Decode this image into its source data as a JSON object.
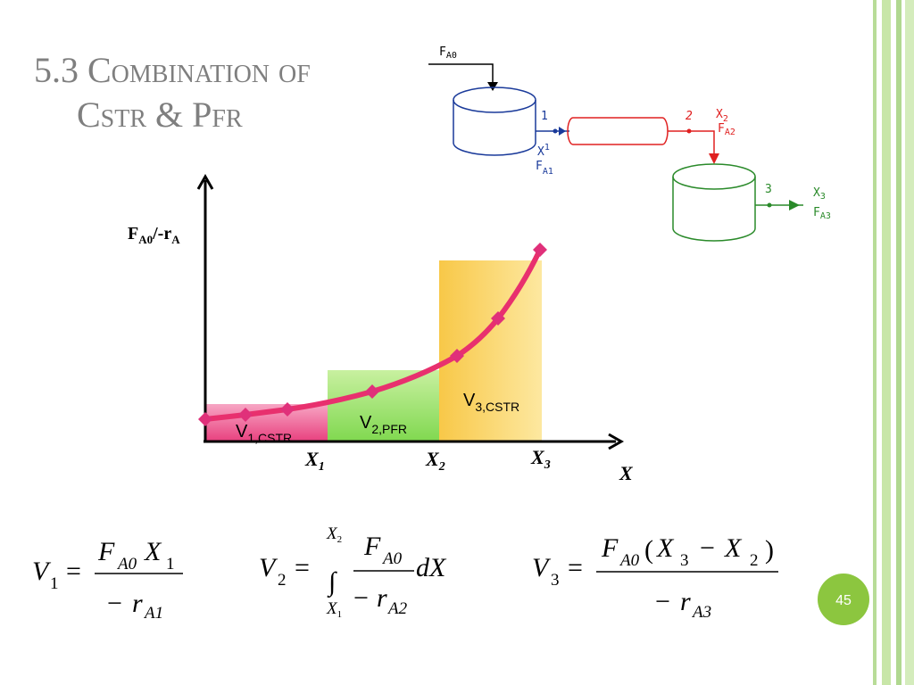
{
  "title": {
    "line1": "5.3 Combination of",
    "line2": "Cstr & Pfr"
  },
  "graph": {
    "y_label": {
      "b": "F",
      "s": "A0",
      "mid": "/-r",
      "s2": "A"
    },
    "regions": [
      {
        "b": "V",
        "s": "1,CSTR"
      },
      {
        "b": "V",
        "s": "2,PFR"
      },
      {
        "b": "V",
        "s": "3,CSTR"
      }
    ],
    "x_ticks": [
      {
        "b": "X",
        "s": "1"
      },
      {
        "b": "X",
        "s": "2"
      },
      {
        "b": "X",
        "s": "3"
      }
    ],
    "x_label": "X"
  },
  "schematic": {
    "feed": {
      "b": "F",
      "s": "A0"
    },
    "streams": [
      {
        "number": "1",
        "x": {
          "b": "X",
          "s": "1"
        },
        "f": {
          "b": "F",
          "s": "A1"
        }
      },
      {
        "number": "2",
        "x": {
          "b": "X",
          "s": "2"
        },
        "f": {
          "b": "F",
          "s": "A2"
        }
      },
      {
        "number": "3",
        "x": {
          "b": "X",
          "s": "3"
        },
        "f": {
          "b": "F",
          "s": "A3"
        }
      }
    ]
  },
  "equations": [
    {
      "lhs": "V",
      "lhs_sub": "1",
      "equals": "=",
      "num": [
        {
          "b": "F",
          "s": "A0"
        },
        {
          "b": "X",
          "s": "1"
        }
      ],
      "den": {
        "minus": "−",
        "b": "r",
        "s": "A1"
      }
    },
    {
      "lhs": "V",
      "lhs_sub": "2",
      "equals": "=",
      "integral": "∫",
      "upper": {
        "b": "X",
        "s": "2"
      },
      "lower": {
        "b": "X",
        "s": "1"
      },
      "num": [
        {
          "b": "F",
          "s": "A0"
        }
      ],
      "den": {
        "minus": "−",
        "b": "r",
        "s": "A2"
      },
      "tail": "dX"
    },
    {
      "lhs": "V",
      "lhs_sub": "3",
      "equals": "=",
      "num": [
        {
          "b": "F",
          "s": "A0"
        },
        {
          "b": "("
        },
        {
          "b": "X",
          "s": "3"
        },
        {
          "b": "−"
        },
        {
          "b": "X",
          "s": "2"
        },
        {
          "b": ")"
        }
      ],
      "den": {
        "minus": "−",
        "b": "r",
        "s": "A3"
      }
    }
  ],
  "page_number": "45"
}
